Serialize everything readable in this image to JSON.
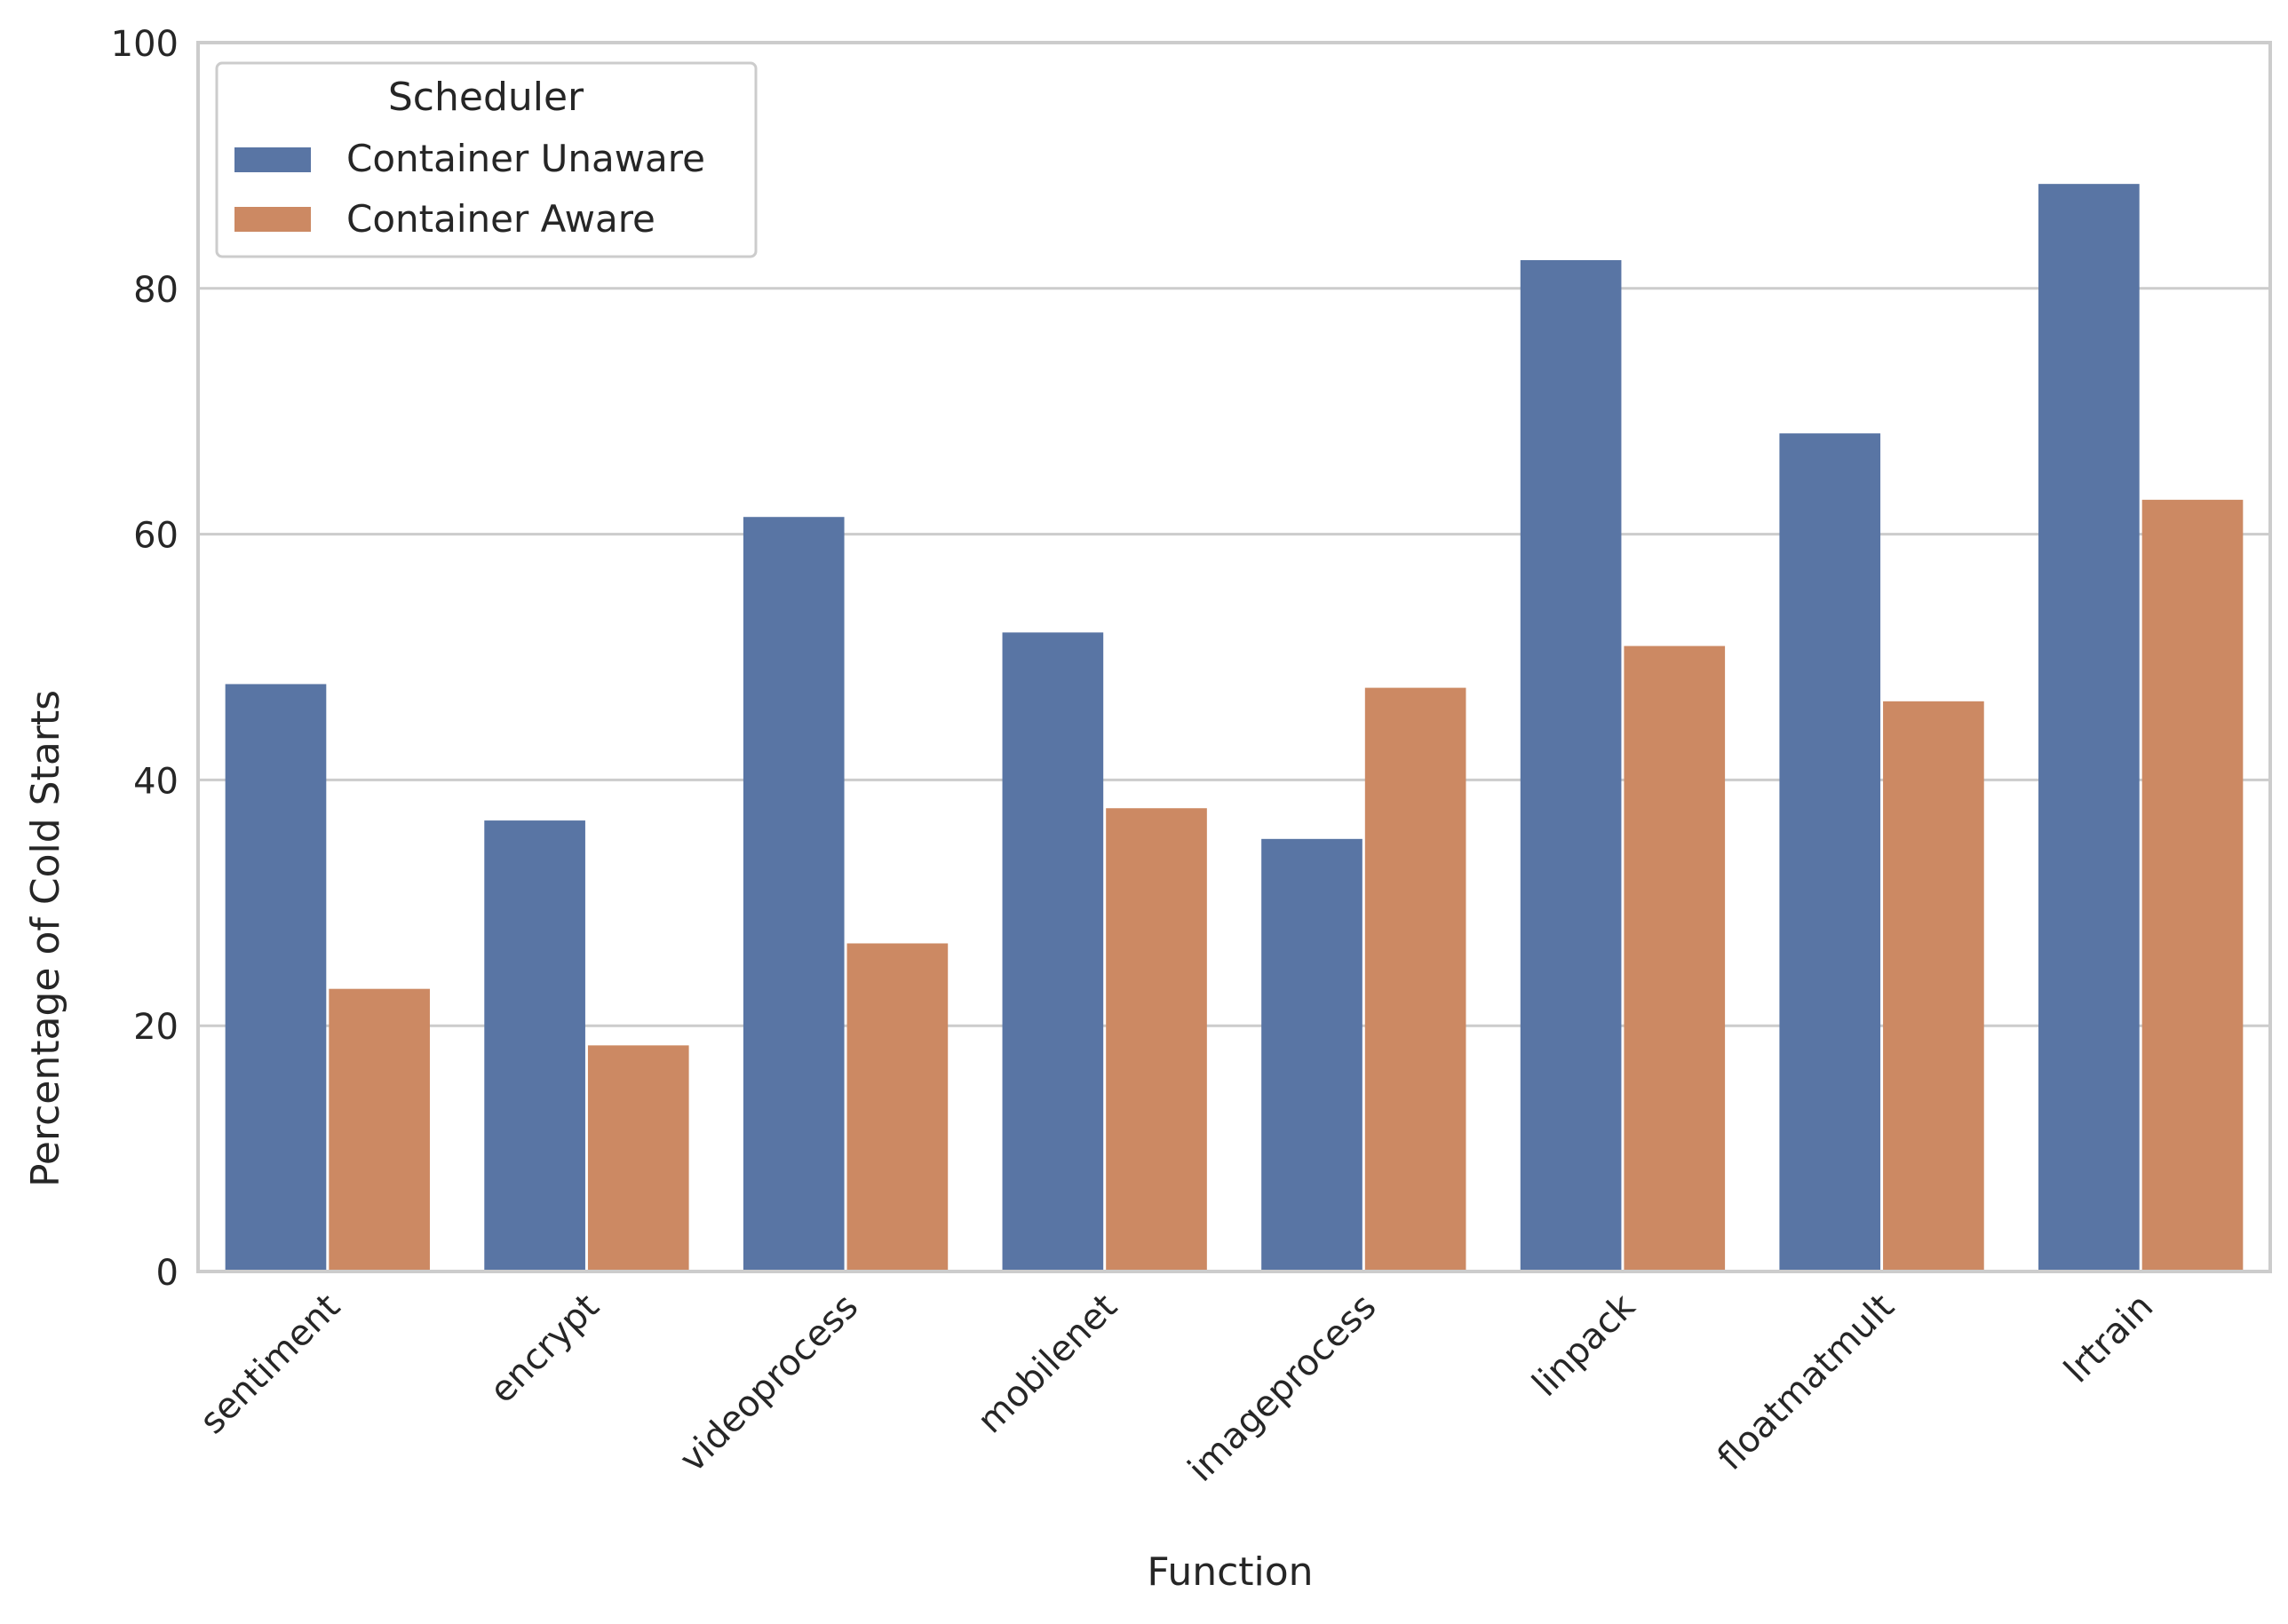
{
  "chart_data": {
    "type": "bar",
    "title": "",
    "xlabel": "Function",
    "ylabel": "Percentage of Cold Starts",
    "ylim": [
      0,
      100
    ],
    "yticks": [
      0,
      20,
      40,
      60,
      80,
      100
    ],
    "grid": true,
    "categories": [
      "sentiment",
      "encrypt",
      "videoprocess",
      "mobilenet",
      "imageprocess",
      "linpack",
      "floatmatmult",
      "lrtrain"
    ],
    "legend": {
      "title": "Scheduler",
      "placement": "upper-left"
    },
    "series": [
      {
        "name": "Container Unaware",
        "color": "#5975a4",
        "values": [
          47.8,
          36.7,
          61.4,
          52.0,
          35.2,
          82.3,
          68.2,
          88.5
        ]
      },
      {
        "name": "Container Aware",
        "color": "#cc8963",
        "values": [
          23.0,
          18.4,
          26.7,
          37.7,
          47.5,
          50.9,
          46.4,
          62.8
        ]
      }
    ]
  }
}
